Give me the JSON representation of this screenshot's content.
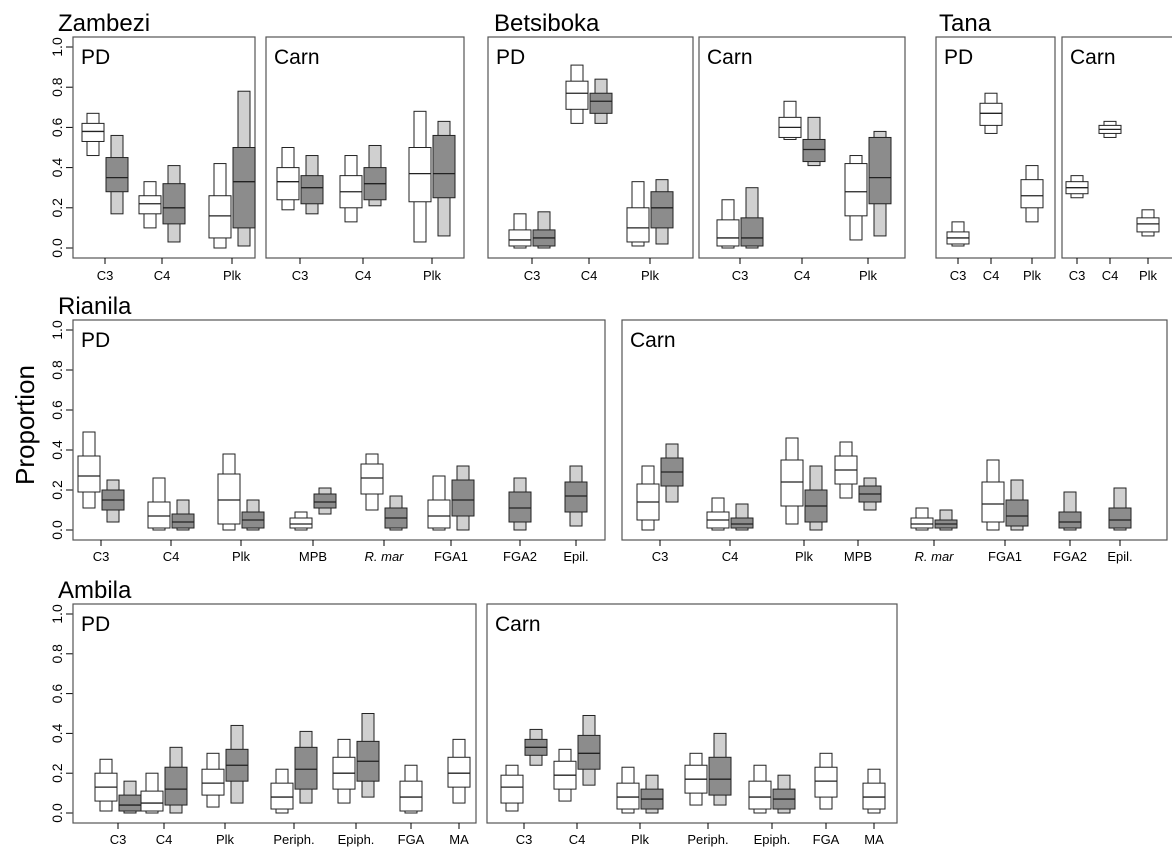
{
  "colors": {
    "observed": "#ffffff",
    "predicted": "#8c8c8c",
    "predicted_light": "#d0d0d0",
    "stroke": "#222222"
  },
  "chart_data": {
    "type": "boxplot",
    "ylabel": "Proportion",
    "ylim": [
      0,
      1
    ],
    "yticks": [
      "0.0",
      "0.2",
      "0.4",
      "0.6",
      "0.8",
      "1.0"
    ],
    "groups": [
      {
        "title": "Zambezi",
        "panels": [
          {
            "label": "PD",
            "categories": [
              "C3",
              "C4",
              "Plk"
            ],
            "pairs": [
              [
                [
                  0.46,
                  0.53,
                  0.58,
                  0.62,
                  0.67
                ],
                [
                  0.17,
                  0.28,
                  0.35,
                  0.45,
                  0.56
                ]
              ],
              [
                [
                  0.1,
                  0.17,
                  0.22,
                  0.26,
                  0.33
                ],
                [
                  0.03,
                  0.12,
                  0.2,
                  0.32,
                  0.41
                ]
              ],
              [
                [
                  0.0,
                  0.05,
                  0.16,
                  0.26,
                  0.42
                ],
                [
                  0.01,
                  0.1,
                  0.33,
                  0.5,
                  0.78
                ]
              ]
            ]
          },
          {
            "label": "Carn",
            "categories": [
              "C3",
              "C4",
              "Plk"
            ],
            "pairs": [
              [
                [
                  0.19,
                  0.24,
                  0.33,
                  0.4,
                  0.5
                ],
                [
                  0.17,
                  0.22,
                  0.3,
                  0.36,
                  0.46
                ]
              ],
              [
                [
                  0.13,
                  0.2,
                  0.28,
                  0.36,
                  0.46
                ],
                [
                  0.21,
                  0.24,
                  0.32,
                  0.4,
                  0.51
                ]
              ],
              [
                [
                  0.03,
                  0.23,
                  0.37,
                  0.5,
                  0.68
                ],
                [
                  0.06,
                  0.25,
                  0.37,
                  0.56,
                  0.63
                ]
              ]
            ]
          }
        ]
      },
      {
        "title": "Betsiboka",
        "panels": [
          {
            "label": "PD",
            "categories": [
              "C3",
              "C4",
              "Plk"
            ],
            "pairs": [
              [
                [
                  0.0,
                  0.01,
                  0.04,
                  0.09,
                  0.17
                ],
                [
                  0.0,
                  0.01,
                  0.05,
                  0.09,
                  0.18
                ]
              ],
              [
                [
                  0.62,
                  0.69,
                  0.77,
                  0.83,
                  0.91
                ],
                [
                  0.62,
                  0.67,
                  0.73,
                  0.77,
                  0.84
                ]
              ],
              [
                [
                  0.01,
                  0.03,
                  0.1,
                  0.2,
                  0.33
                ],
                [
                  0.02,
                  0.1,
                  0.2,
                  0.28,
                  0.34
                ]
              ]
            ]
          },
          {
            "label": "Carn",
            "categories": [
              "C3",
              "C4",
              "Plk"
            ],
            "pairs": [
              [
                [
                  0.0,
                  0.01,
                  0.05,
                  0.14,
                  0.24
                ],
                [
                  0.0,
                  0.01,
                  0.05,
                  0.15,
                  0.3
                ]
              ],
              [
                [
                  0.54,
                  0.55,
                  0.6,
                  0.65,
                  0.73
                ],
                [
                  0.41,
                  0.43,
                  0.49,
                  0.54,
                  0.65
                ]
              ],
              [
                [
                  0.04,
                  0.16,
                  0.28,
                  0.42,
                  0.46
                ],
                [
                  0.06,
                  0.22,
                  0.35,
                  0.55,
                  0.58
                ]
              ]
            ]
          }
        ]
      },
      {
        "title": "Tana",
        "panels": [
          {
            "label": "PD",
            "categories": [
              "C3",
              "C4",
              "Plk"
            ],
            "pairs": [
              [
                [
                  0.01,
                  0.02,
                  0.05,
                  0.08,
                  0.13
                ],
                null
              ],
              [
                [
                  0.57,
                  0.61,
                  0.67,
                  0.72,
                  0.77
                ],
                null
              ],
              [
                [
                  0.13,
                  0.2,
                  0.26,
                  0.34,
                  0.41
                ],
                null
              ]
            ]
          },
          {
            "label": "Carn",
            "categories": [
              "C3",
              "C4",
              "Plk"
            ],
            "pairs": [
              [
                [
                  0.25,
                  0.27,
                  0.3,
                  0.33,
                  0.36
                ],
                null
              ],
              [
                [
                  0.55,
                  0.57,
                  0.59,
                  0.61,
                  0.63
                ],
                null
              ],
              [
                [
                  0.06,
                  0.08,
                  0.12,
                  0.15,
                  0.19
                ],
                null
              ]
            ]
          }
        ]
      },
      {
        "title": "Rianila",
        "panels": [
          {
            "label": "PD",
            "categories": [
              "C3",
              "C4",
              "Plk",
              "MPB",
              "R. mar",
              "FGA1",
              "FGA2",
              "Epil."
            ],
            "italic": [
              "R. mar"
            ],
            "pairs": [
              [
                [
                  0.11,
                  0.19,
                  0.27,
                  0.37,
                  0.49
                ],
                [
                  0.04,
                  0.1,
                  0.15,
                  0.2,
                  0.25
                ]
              ],
              [
                [
                  0.0,
                  0.01,
                  0.07,
                  0.14,
                  0.26
                ],
                [
                  0.0,
                  0.01,
                  0.04,
                  0.08,
                  0.15
                ]
              ],
              [
                [
                  0.0,
                  0.03,
                  0.15,
                  0.28,
                  0.38
                ],
                [
                  0.0,
                  0.01,
                  0.05,
                  0.09,
                  0.15
                ]
              ],
              [
                [
                  0.0,
                  0.01,
                  0.03,
                  0.06,
                  0.09
                ],
                [
                  0.08,
                  0.11,
                  0.14,
                  0.18,
                  0.21
                ]
              ],
              [
                [
                  0.1,
                  0.18,
                  0.26,
                  0.33,
                  0.38
                ],
                [
                  0.0,
                  0.01,
                  0.06,
                  0.11,
                  0.17
                ]
              ],
              [
                [
                  0.0,
                  0.01,
                  0.07,
                  0.15,
                  0.27
                ],
                [
                  0.0,
                  0.07,
                  0.15,
                  0.25,
                  0.32
                ]
              ],
              [
                [
                  0.0,
                  0.0,
                  0.0,
                  0.0,
                  0.0
                ],
                [
                  0.0,
                  0.04,
                  0.11,
                  0.19,
                  0.26
                ]
              ],
              [
                [
                  0.0,
                  0.0,
                  0.0,
                  0.0,
                  0.0
                ],
                [
                  0.02,
                  0.09,
                  0.17,
                  0.24,
                  0.32
                ]
              ]
            ]
          },
          {
            "label": "Carn",
            "categories": [
              "C3",
              "C4",
              "Plk",
              "MPB",
              "R. mar",
              "FGA1",
              "FGA2",
              "Epil."
            ],
            "italic": [
              "R. mar"
            ],
            "pairs": [
              [
                [
                  0.0,
                  0.05,
                  0.14,
                  0.23,
                  0.32
                ],
                [
                  0.14,
                  0.22,
                  0.29,
                  0.36,
                  0.43
                ]
              ],
              [
                [
                  0.0,
                  0.01,
                  0.05,
                  0.09,
                  0.16
                ],
                [
                  0.0,
                  0.01,
                  0.03,
                  0.06,
                  0.13
                ]
              ],
              [
                [
                  0.03,
                  0.12,
                  0.24,
                  0.35,
                  0.46
                ],
                [
                  0.0,
                  0.04,
                  0.12,
                  0.2,
                  0.32
                ]
              ],
              [
                [
                  0.16,
                  0.23,
                  0.3,
                  0.37,
                  0.44
                ],
                [
                  0.1,
                  0.14,
                  0.18,
                  0.22,
                  0.26
                ]
              ],
              [
                [
                  0.0,
                  0.01,
                  0.03,
                  0.06,
                  0.11
                ],
                [
                  0.0,
                  0.01,
                  0.03,
                  0.05,
                  0.1
                ]
              ],
              [
                [
                  0.0,
                  0.04,
                  0.13,
                  0.24,
                  0.35
                ],
                [
                  0.0,
                  0.02,
                  0.07,
                  0.15,
                  0.25
                ]
              ],
              [
                [
                  0.0,
                  0.0,
                  0.0,
                  0.0,
                  0.0
                ],
                [
                  0.0,
                  0.01,
                  0.04,
                  0.09,
                  0.19
                ]
              ],
              [
                [
                  0.0,
                  0.0,
                  0.0,
                  0.0,
                  0.0
                ],
                [
                  0.0,
                  0.01,
                  0.05,
                  0.11,
                  0.21
                ]
              ]
            ]
          }
        ]
      },
      {
        "title": "Ambila",
        "panels": [
          {
            "label": "PD",
            "categories": [
              "C3",
              "C4",
              "Plk",
              "Periph.",
              "Epiph.",
              "FGA",
              "MA"
            ],
            "pairs": [
              [
                [
                  0.01,
                  0.06,
                  0.13,
                  0.2,
                  0.27
                ],
                [
                  0.0,
                  0.01,
                  0.04,
                  0.09,
                  0.16
                ]
              ],
              [
                [
                  0.0,
                  0.01,
                  0.05,
                  0.11,
                  0.2
                ],
                [
                  0.0,
                  0.04,
                  0.12,
                  0.23,
                  0.33
                ]
              ],
              [
                [
                  0.03,
                  0.09,
                  0.15,
                  0.22,
                  0.3
                ],
                [
                  0.05,
                  0.16,
                  0.24,
                  0.32,
                  0.44
                ]
              ],
              [
                [
                  0.0,
                  0.02,
                  0.08,
                  0.15,
                  0.22
                ],
                [
                  0.05,
                  0.12,
                  0.22,
                  0.33,
                  0.41
                ]
              ],
              [
                [
                  0.05,
                  0.12,
                  0.2,
                  0.28,
                  0.37
                ],
                [
                  0.08,
                  0.16,
                  0.26,
                  0.36,
                  0.5
                ]
              ],
              [
                [
                  0.0,
                  0.01,
                  0.08,
                  0.16,
                  0.24
                ],
                null
              ],
              [
                [
                  0.05,
                  0.13,
                  0.2,
                  0.28,
                  0.37
                ],
                null
              ]
            ]
          },
          {
            "label": "Carn",
            "categories": [
              "C3",
              "C4",
              "Plk",
              "Periph.",
              "Epiph.",
              "FGA",
              "MA"
            ],
            "pairs": [
              [
                [
                  0.01,
                  0.05,
                  0.13,
                  0.19,
                  0.24
                ],
                [
                  0.24,
                  0.29,
                  0.33,
                  0.37,
                  0.42
                ]
              ],
              [
                [
                  0.06,
                  0.12,
                  0.19,
                  0.26,
                  0.32
                ],
                [
                  0.14,
                  0.22,
                  0.3,
                  0.39,
                  0.49
                ]
              ],
              [
                [
                  0.0,
                  0.02,
                  0.08,
                  0.15,
                  0.23
                ],
                [
                  0.0,
                  0.02,
                  0.07,
                  0.12,
                  0.19
                ]
              ],
              [
                [
                  0.04,
                  0.1,
                  0.17,
                  0.24,
                  0.3
                ],
                [
                  0.04,
                  0.09,
                  0.17,
                  0.28,
                  0.4
                ]
              ],
              [
                [
                  0.0,
                  0.02,
                  0.08,
                  0.16,
                  0.24
                ],
                [
                  0.0,
                  0.02,
                  0.07,
                  0.12,
                  0.19
                ]
              ],
              [
                [
                  0.02,
                  0.08,
                  0.16,
                  0.23,
                  0.3
                ],
                null
              ],
              [
                [
                  0.0,
                  0.02,
                  0.08,
                  0.15,
                  0.22
                ],
                null
              ]
            ]
          }
        ]
      }
    ]
  }
}
